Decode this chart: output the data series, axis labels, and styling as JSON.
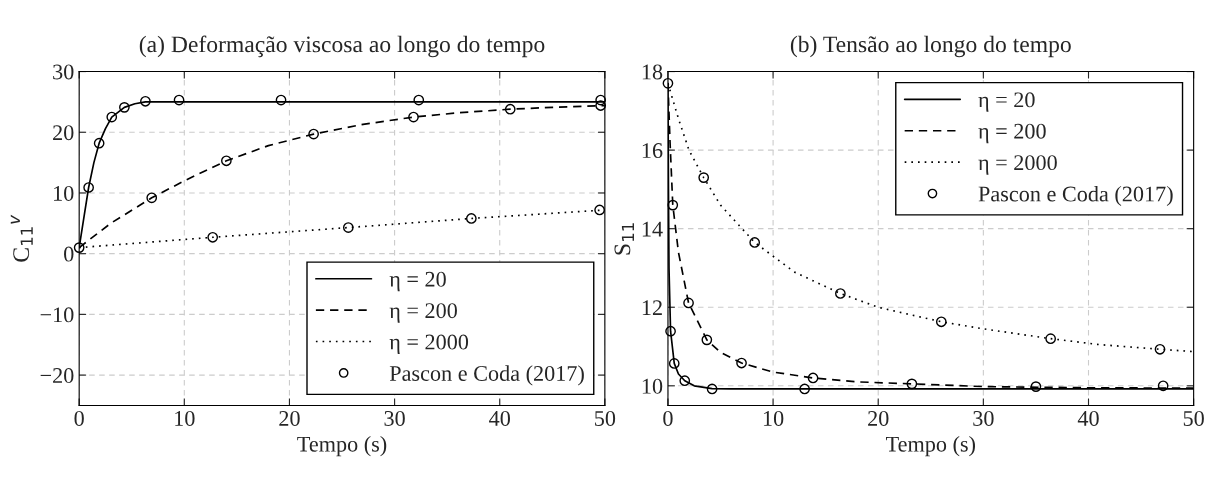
{
  "chart_data": [
    {
      "type": "line",
      "title": "(a) Deformação viscosa ao longo do tempo",
      "xlabel": "Tempo (s)",
      "ylabel": "C$_{11}$$^{v}$",
      "xlim": [
        0,
        50
      ],
      "ylim": [
        -25,
        30
      ],
      "xticks": [
        0,
        10,
        20,
        30,
        40,
        50
      ],
      "yticks": [
        -20,
        -10,
        0,
        10,
        20,
        30
      ],
      "grid": true,
      "legend": "bottom right",
      "series": [
        {
          "name": "η = 20",
          "color": "#000000",
          "line_style": "solid",
          "x": [
            0,
            0.5,
            0.9,
            1.4,
            1.9,
            2.5,
            3.1,
            4.3,
            5.3,
            6.3,
            8,
            50
          ],
          "values": [
            1,
            6.5,
            10.9,
            15,
            18.2,
            20.6,
            22.5,
            24.1,
            24.7,
            25,
            25,
            25
          ]
        },
        {
          "name": "η = 200",
          "color": "#000000",
          "line_style": "dashed",
          "x": [
            0,
            3,
            6.9,
            10,
            14,
            18,
            22.3,
            27,
            31.8,
            36,
            41,
            45,
            50
          ],
          "values": [
            1,
            5,
            9.2,
            12,
            15.3,
            17.8,
            19.7,
            21.3,
            22.5,
            23.2,
            23.8,
            24.1,
            24.4
          ]
        },
        {
          "name": "η = 2000",
          "color": "#000000",
          "line_style": "dotted",
          "x": [
            0,
            12.7,
            25.6,
            37.3,
            50
          ],
          "values": [
            1,
            2.7,
            4.3,
            5.8,
            7.2
          ]
        },
        {
          "name": "Pascon e Coda (2017)",
          "type": "scatter",
          "color": "#000000",
          "marker": "circle",
          "x": [
            0,
            0.9,
            1.9,
            3.1,
            4.3,
            6.3,
            9.5,
            19.2,
            32.3,
            49.6,
            6.9,
            14,
            22.3,
            31.8,
            41,
            49.6,
            12.7,
            25.6,
            37.3,
            49.5
          ],
          "values": [
            1,
            10.9,
            18.2,
            22.5,
            24.1,
            25.1,
            25.3,
            25.3,
            25.3,
            25.3,
            9.2,
            15.3,
            19.7,
            22.5,
            23.8,
            24.4,
            2.7,
            4.3,
            5.8,
            7.2
          ]
        }
      ]
    },
    {
      "type": "line",
      "title": "(b) Tensão ao longo do tempo",
      "xlabel": "Tempo (s)",
      "ylabel": "S$_{11}$",
      "xlim": [
        0,
        50
      ],
      "ylim": [
        9.5,
        18
      ],
      "xticks": [
        0,
        10,
        20,
        30,
        40,
        50
      ],
      "yticks": [
        10,
        12,
        14,
        16,
        18
      ],
      "grid": true,
      "legend": "top right",
      "series": [
        {
          "name": "η = 20",
          "color": "#000000",
          "line_style": "solid",
          "x": [
            0,
            0.05,
            0.1,
            0.25,
            0.6,
            1,
            1.6,
            2.5,
            4.2,
            6,
            50
          ],
          "values": [
            17.7,
            15,
            13,
            11.39,
            10.57,
            10.3,
            10.13,
            10.0,
            9.93,
            9.92,
            9.92
          ]
        },
        {
          "name": "η = 200",
          "color": "#000000",
          "line_style": "dashed",
          "x": [
            0,
            0.2,
            0.46,
            1,
            1.96,
            3.7,
            5,
            7,
            10,
            13.8,
            18,
            23.2,
            30,
            40,
            50
          ],
          "values": [
            17.7,
            16.2,
            14.6,
            13.4,
            12.11,
            11.17,
            10.85,
            10.58,
            10.35,
            10.2,
            10.1,
            10.05,
            9.98,
            9.95,
            9.94
          ]
        },
        {
          "name": "η = 2000",
          "color": "#000000",
          "line_style": "dotted",
          "x": [
            0,
            1,
            2,
            3.4,
            5,
            8.25,
            12,
            16.4,
            20,
            26,
            30,
            36.4,
            41,
            46.8,
            50
          ],
          "values": [
            17.7,
            16.8,
            16,
            15.3,
            14.6,
            13.65,
            12.9,
            12.35,
            12.0,
            11.63,
            11.45,
            11.2,
            11.05,
            10.93,
            10.87
          ]
        },
        {
          "name": "Pascon e Coda (2017)",
          "type": "scatter",
          "color": "#000000",
          "marker": "circle",
          "x": [
            0,
            0.25,
            0.6,
            1.6,
            4.2,
            13,
            0.46,
            1.96,
            3.7,
            7,
            13.8,
            23.2,
            35,
            47.1,
            3.4,
            8.25,
            16.4,
            26,
            36.4,
            46.8
          ],
          "values": [
            17.7,
            11.39,
            10.57,
            10.13,
            9.92,
            9.92,
            14.6,
            12.11,
            11.17,
            10.58,
            10.2,
            10.05,
            9.98,
            10.0,
            15.3,
            13.65,
            12.35,
            11.63,
            11.2,
            10.93
          ]
        }
      ]
    }
  ]
}
